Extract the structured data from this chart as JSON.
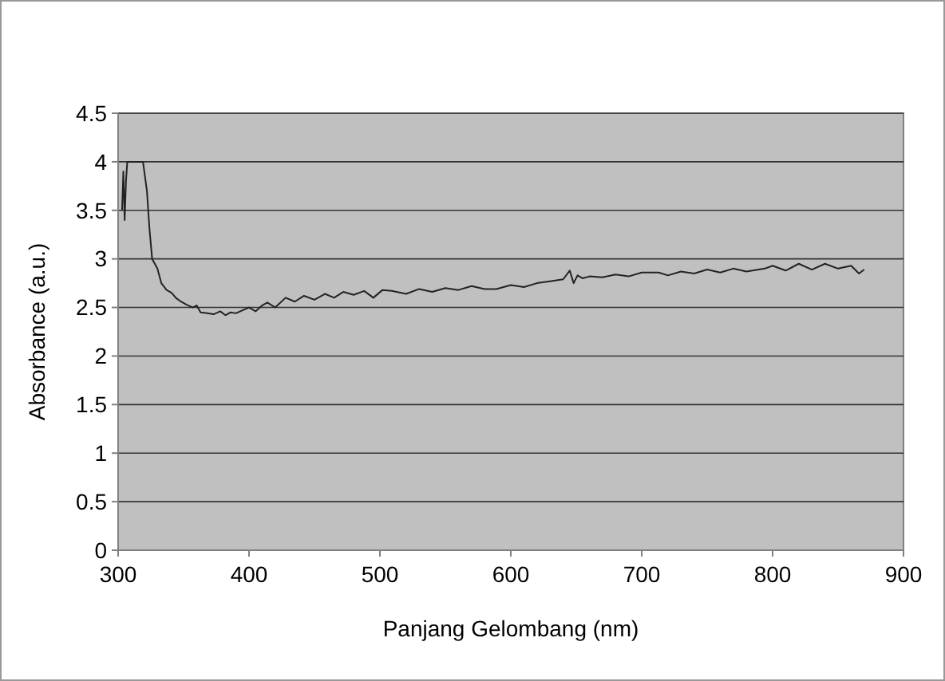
{
  "chart_data": {
    "type": "line",
    "xlabel": "Panjang Gelombang (nm)",
    "ylabel": "Absorbance (a.u.)",
    "xlim": [
      300,
      900
    ],
    "ylim": [
      0,
      4.5
    ],
    "xticks": [
      300,
      400,
      500,
      600,
      700,
      800,
      900
    ],
    "yticks": [
      0,
      0.5,
      1,
      1.5,
      2,
      2.5,
      3,
      3.5,
      4,
      4.5
    ],
    "grid": "y",
    "marker": "none",
    "series": [
      {
        "color": "#222222",
        "x": [
          303,
          304,
          305,
          306,
          307,
          310,
          315,
          319,
          320,
          322,
          324,
          326,
          328,
          330,
          333,
          337,
          341,
          344,
          348,
          352,
          357,
          360,
          363,
          368,
          373,
          378,
          382,
          386,
          390,
          395,
          400,
          405,
          410,
          414,
          420,
          428,
          435,
          442,
          450,
          458,
          465,
          472,
          480,
          488,
          495,
          502,
          509,
          520,
          530,
          540,
          550,
          560,
          570,
          580,
          589,
          600,
          610,
          620,
          630,
          640,
          645,
          648,
          651,
          655,
          660,
          670,
          680,
          690,
          700,
          713,
          720,
          730,
          740,
          750,
          760,
          770,
          780,
          794,
          800,
          810,
          820,
          830,
          840,
          850,
          860,
          866,
          870
        ],
        "values": [
          3.5,
          3.9,
          3.4,
          3.8,
          4,
          4,
          4,
          4,
          3.9,
          3.7,
          3.3,
          3.0,
          2.95,
          2.9,
          2.75,
          2.68,
          2.65,
          2.6,
          2.56,
          2.53,
          2.5,
          2.52,
          2.45,
          2.44,
          2.43,
          2.46,
          2.42,
          2.45,
          2.44,
          2.47,
          2.5,
          2.46,
          2.52,
          2.55,
          2.5,
          2.6,
          2.56,
          2.62,
          2.58,
          2.64,
          2.6,
          2.66,
          2.63,
          2.67,
          2.6,
          2.68,
          2.67,
          2.64,
          2.69,
          2.66,
          2.7,
          2.68,
          2.72,
          2.69,
          2.69,
          2.73,
          2.71,
          2.75,
          2.77,
          2.79,
          2.88,
          2.75,
          2.83,
          2.8,
          2.82,
          2.81,
          2.84,
          2.82,
          2.86,
          2.86,
          2.83,
          2.87,
          2.85,
          2.89,
          2.86,
          2.9,
          2.87,
          2.9,
          2.93,
          2.88,
          2.95,
          2.89,
          2.95,
          2.9,
          2.93,
          2.85,
          2.89
        ]
      }
    ]
  }
}
